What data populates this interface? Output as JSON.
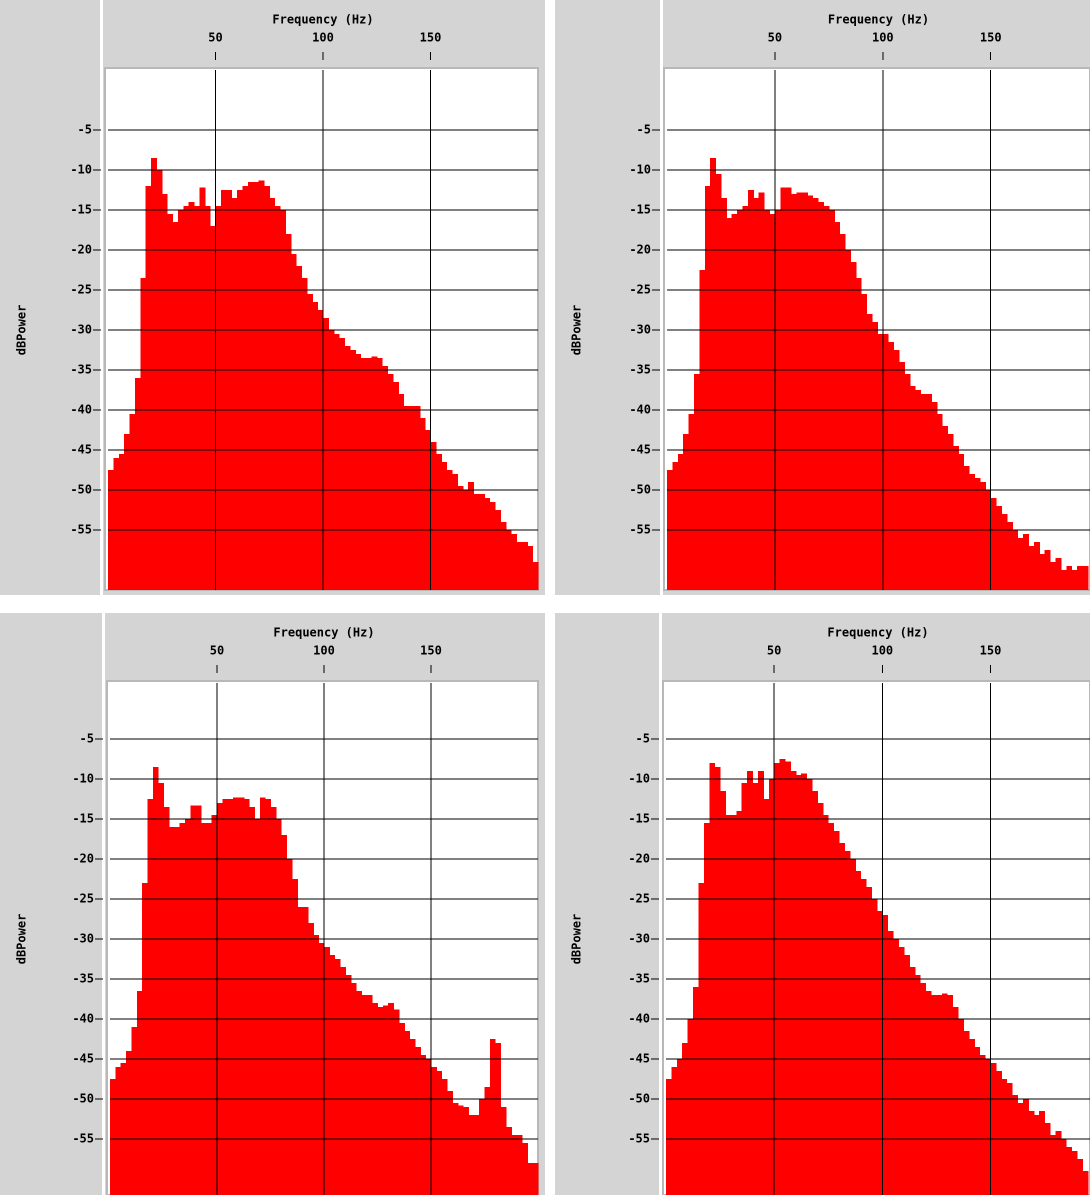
{
  "chart_data": [
    {
      "type": "histogram",
      "x_label": "Frequency (Hz)",
      "y_label": "dBPower",
      "color": "#ff0000",
      "grid": true,
      "xlim": [
        0,
        200
      ],
      "ylim": [
        -62.5,
        2.5
      ],
      "xticks": [
        50,
        100,
        150
      ],
      "yticks": [
        -55,
        -50,
        -45,
        -40,
        -35,
        -30,
        -25,
        -20,
        -15,
        -10,
        -5
      ],
      "bins": [
        0,
        2.5,
        5,
        7.5,
        10,
        12.5,
        15,
        17.5,
        20,
        22.5,
        25,
        27.5,
        30,
        32.5,
        35,
        37.5,
        40,
        42.5,
        45,
        47.5,
        50,
        52.5,
        55,
        57.5,
        60,
        62.5,
        65,
        67.5,
        70,
        72.5,
        75,
        77.5,
        80,
        82.5,
        85,
        87.5,
        90,
        92.5,
        95,
        97.5,
        100,
        102.5,
        105,
        107.5,
        110,
        112.5,
        115,
        117.5,
        120,
        122.5,
        125,
        127.5,
        130,
        132.5,
        135,
        137.5,
        140,
        142.5,
        145,
        147.5,
        150,
        152.5,
        155,
        157.5,
        160,
        162.5,
        165,
        167.5,
        170,
        172.5,
        175,
        177.5,
        180,
        182.5,
        185,
        187.5,
        190,
        192.5,
        195,
        197.5,
        200
      ],
      "values": [
        -47.5,
        -46,
        -45.5,
        -43,
        -40.5,
        -36,
        -23.5,
        -12,
        -8.5,
        -10,
        -13,
        -15.5,
        -16.5,
        -15,
        -14.5,
        -14,
        -14.5,
        -12.2,
        -14.5,
        -17,
        -14.5,
        -12.5,
        -12.5,
        -13.5,
        -12.5,
        -12,
        -11.5,
        -11.5,
        -11.3,
        -12,
        -13.5,
        -14.5,
        -15,
        -18,
        -20.5,
        -22,
        -23.5,
        -25.5,
        -26.5,
        -27.5,
        -28.5,
        -30,
        -30.5,
        -31,
        -32,
        -32.5,
        -33,
        -33.5,
        -33.5,
        -33.3,
        -33.5,
        -34.5,
        -35.5,
        -36.5,
        -38,
        -39.5,
        -39.5,
        -39.5,
        -41,
        -42.5,
        -44,
        -45.5,
        -46.5,
        -47.5,
        -48,
        -49.5,
        -50,
        -49,
        -50.5,
        -50.5,
        -51,
        -51.5,
        -52.5,
        -54,
        -55,
        -55.5,
        -56.5,
        -56.5,
        -57,
        -59
      ]
    },
    {
      "type": "histogram",
      "x_label": "Frequency (Hz)",
      "y_label": "dBPower",
      "color": "#ff0000",
      "grid": true,
      "xlim": [
        0,
        196
      ],
      "ylim": [
        -62.5,
        2.5
      ],
      "xticks": [
        50,
        100,
        150
      ],
      "yticks": [
        -55,
        -50,
        -45,
        -40,
        -35,
        -30,
        -25,
        -20,
        -15,
        -10,
        -5
      ],
      "bins": [
        0,
        2.5,
        5,
        7.5,
        10,
        12.5,
        15,
        17.5,
        20,
        22.5,
        25,
        27.5,
        30,
        32.5,
        35,
        37.5,
        40,
        42.5,
        45,
        47.5,
        50,
        52.5,
        55,
        57.5,
        60,
        62.5,
        65,
        67.5,
        70,
        72.5,
        75,
        77.5,
        80,
        82.5,
        85,
        87.5,
        90,
        92.5,
        95,
        97.5,
        100,
        102.5,
        105,
        107.5,
        110,
        112.5,
        115,
        117.5,
        120,
        122.5,
        125,
        127.5,
        130,
        132.5,
        135,
        137.5,
        140,
        142.5,
        145,
        147.5,
        150,
        152.5,
        155,
        157.5,
        160,
        162.5,
        165,
        167.5,
        170,
        172.5,
        175,
        177.5,
        180,
        182.5,
        185,
        187.5,
        190,
        192.5,
        195
      ],
      "values": [
        -47.5,
        -46.5,
        -45.5,
        -43,
        -40.5,
        -35.5,
        -22.5,
        -12,
        -8.5,
        -10.5,
        -13.5,
        -16,
        -15.5,
        -15,
        -14.5,
        -12.5,
        -13.5,
        -12.8,
        -15,
        -15.5,
        -15,
        -12.2,
        -12.2,
        -13,
        -12.8,
        -12.8,
        -13.2,
        -13.5,
        -14,
        -14.5,
        -15,
        -16.5,
        -18,
        -20,
        -21.5,
        -23.5,
        -25.5,
        -28,
        -29,
        -30.5,
        -30.5,
        -31.5,
        -32.5,
        -34,
        -35.5,
        -37,
        -37.5,
        -38,
        -38,
        -39,
        -40.5,
        -42,
        -43,
        -44.5,
        -45.5,
        -47,
        -48,
        -48.5,
        -49,
        -50,
        -51,
        -52,
        -53,
        -54,
        -55,
        -56,
        -55.5,
        -57,
        -56.5,
        -58,
        -57.5,
        -59,
        -58.5,
        -60,
        -59.5,
        -60,
        -59.5,
        -59.5
      ]
    },
    {
      "type": "histogram",
      "x_label": "Frequency (Hz)",
      "y_label": "dBPower",
      "color": "#ff0000",
      "grid": true,
      "xlim": [
        0,
        200
      ],
      "ylim": [
        -62,
        2
      ],
      "xticks": [
        50,
        100,
        150
      ],
      "yticks": [
        -55,
        -50,
        -45,
        -40,
        -35,
        -30,
        -25,
        -20,
        -15,
        -10,
        -5
      ],
      "bins": [
        0,
        2.5,
        5,
        7.5,
        10,
        12.5,
        15,
        17.5,
        20,
        22.5,
        25,
        27.5,
        30,
        32.5,
        35,
        37.5,
        40,
        42.5,
        45,
        47.5,
        50,
        52.5,
        55,
        57.5,
        60,
        62.5,
        65,
        67.5,
        70,
        72.5,
        75,
        77.5,
        80,
        82.5,
        85,
        87.5,
        90,
        92.5,
        95,
        97.5,
        100,
        102.5,
        105,
        107.5,
        110,
        112.5,
        115,
        117.5,
        120,
        122.5,
        125,
        127.5,
        130,
        132.5,
        135,
        137.5,
        140,
        142.5,
        145,
        147.5,
        150,
        152.5,
        155,
        157.5,
        160,
        162.5,
        165,
        167.5,
        170,
        172.5,
        175,
        177.5,
        180,
        182.5,
        185,
        187.5,
        190,
        192.5,
        195,
        197.5,
        200
      ],
      "values": [
        -47.5,
        -46,
        -45.5,
        -44,
        -41,
        -36.5,
        -23,
        -12.5,
        -8.5,
        -10.5,
        -13.5,
        -16,
        -16,
        -15.5,
        -15,
        -13.3,
        -13.3,
        -15.5,
        -15.5,
        -14.5,
        -13,
        -12.5,
        -12.5,
        -12.3,
        -12.3,
        -12.5,
        -13.5,
        -15,
        -12.3,
        -12.5,
        -13.5,
        -15,
        -17,
        -20,
        -22.5,
        -26,
        -26,
        -28,
        -29.5,
        -30.5,
        -31,
        -32,
        -32.5,
        -33.5,
        -34.5,
        -35.5,
        -36.5,
        -37,
        -37,
        -38,
        -38.5,
        -38.3,
        -38,
        -38.8,
        -40.5,
        -41.5,
        -42.5,
        -43.5,
        -44.5,
        -45,
        -46,
        -46.5,
        -47.5,
        -49,
        -50.5,
        -50.8,
        -51,
        -52,
        -52,
        -50,
        -48.5,
        -42.5,
        -43,
        -51,
        -53.5,
        -54.5,
        -54.5,
        -55.5,
        -58,
        -58
      ]
    },
    {
      "type": "histogram",
      "x_label": "Frequency (Hz)",
      "y_label": "dBPower",
      "color": "#ff0000",
      "grid": true,
      "xlim": [
        0,
        196
      ],
      "ylim": [
        -62,
        2
      ],
      "xticks": [
        50,
        100,
        150
      ],
      "yticks": [
        -55,
        -50,
        -45,
        -40,
        -35,
        -30,
        -25,
        -20,
        -15,
        -10,
        -5
      ],
      "bins": [
        0,
        2.5,
        5,
        7.5,
        10,
        12.5,
        15,
        17.5,
        20,
        22.5,
        25,
        27.5,
        30,
        32.5,
        35,
        37.5,
        40,
        42.5,
        45,
        47.5,
        50,
        52.5,
        55,
        57.5,
        60,
        62.5,
        65,
        67.5,
        70,
        72.5,
        75,
        77.5,
        80,
        82.5,
        85,
        87.5,
        90,
        92.5,
        95,
        97.5,
        100,
        102.5,
        105,
        107.5,
        110,
        112.5,
        115,
        117.5,
        120,
        122.5,
        125,
        127.5,
        130,
        132.5,
        135,
        137.5,
        140,
        142.5,
        145,
        147.5,
        150,
        152.5,
        155,
        157.5,
        160,
        162.5,
        165,
        167.5,
        170,
        172.5,
        175,
        177.5,
        180,
        182.5,
        185,
        187.5,
        190,
        192.5,
        195
      ],
      "values": [
        -47.5,
        -46,
        -45,
        -43,
        -40,
        -36,
        -23,
        -15.5,
        -8,
        -8.5,
        -11.5,
        -14.5,
        -14.5,
        -14,
        -10.5,
        -9,
        -10.5,
        -9,
        -12.5,
        -10,
        -8,
        -7.5,
        -7.8,
        -9,
        -9.5,
        -9.3,
        -10,
        -11.5,
        -13,
        -14.5,
        -15.5,
        -16.5,
        -18,
        -19,
        -20,
        -21.5,
        -22.5,
        -23.5,
        -25,
        -26.5,
        -27,
        -29,
        -30,
        -31,
        -32,
        -33.5,
        -34.5,
        -35.5,
        -36.5,
        -37,
        -37,
        -36.8,
        -37,
        -38.5,
        -40,
        -41.5,
        -42.5,
        -43.5,
        -44.5,
        -45,
        -45.5,
        -46.5,
        -47.5,
        -48,
        -49.5,
        -50.5,
        -50,
        -51.5,
        -52,
        -51.5,
        -53,
        -54.5,
        -54,
        -55,
        -56,
        -56.5,
        -57.5,
        -59
      ]
    }
  ]
}
